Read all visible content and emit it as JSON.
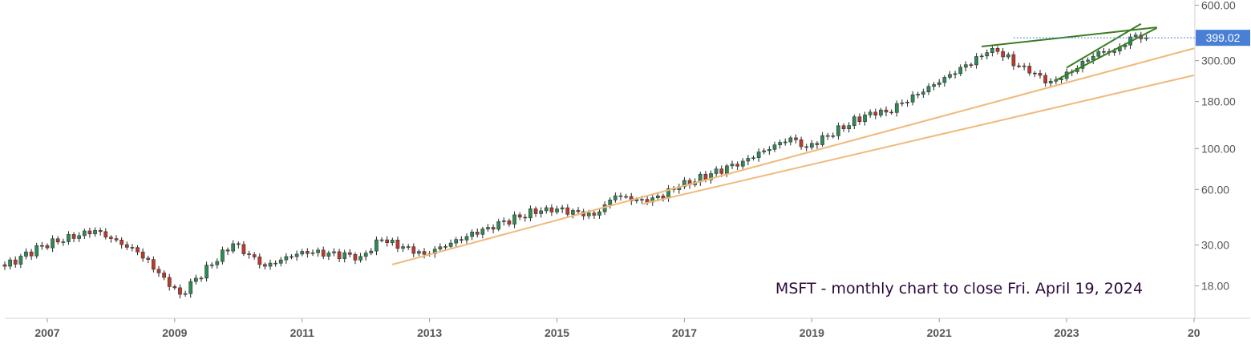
{
  "chart_data": {
    "type": "candlestick",
    "title": "MSFT - monthly chart to close Fri. April 19, 2024",
    "y_scale": "log",
    "ylim": [
      12,
      640
    ],
    "xlim": [
      "2006-05",
      "2025-01"
    ],
    "y_ticks": [
      "600.00",
      "300.00",
      "180.00",
      "100.00",
      "60.00",
      "30.00",
      "18.00"
    ],
    "x_ticks": [
      "2007",
      "2009",
      "2011",
      "2013",
      "2015",
      "2017",
      "2019",
      "2021",
      "2023",
      "20"
    ],
    "last_price": "399.02",
    "colors": {
      "up": "#2e8b57",
      "down": "#c0392b",
      "wick": "#222222",
      "trendline_orange": "#f0b97a",
      "trendline_green": "#3a7d22",
      "price_tag": "#4a7fd6",
      "price_line": "#4a7fd6",
      "axis_text": "#555555",
      "title_text": "#2b0a3d"
    },
    "anchor_closes": [
      [
        "2006-05",
        23.0
      ],
      [
        "2006-12",
        29.8
      ],
      [
        "2007-10",
        36.0
      ],
      [
        "2008-06",
        27.5
      ],
      [
        "2008-11",
        20.0
      ],
      [
        "2009-02",
        16.2
      ],
      [
        "2009-12",
        30.5
      ],
      [
        "2010-06",
        23.0
      ],
      [
        "2011-01",
        27.7
      ],
      [
        "2011-12",
        26.0
      ],
      [
        "2012-04",
        32.0
      ],
      [
        "2012-12",
        26.7
      ],
      [
        "2013-12",
        37.4
      ],
      [
        "2014-11",
        47.8
      ],
      [
        "2015-08",
        43.5
      ],
      [
        "2015-12",
        55.5
      ],
      [
        "2016-06",
        51.2
      ],
      [
        "2016-12",
        62.1
      ],
      [
        "2017-12",
        85.5
      ],
      [
        "2018-09",
        114.4
      ],
      [
        "2018-12",
        101.6
      ],
      [
        "2019-12",
        157.7
      ],
      [
        "2020-02",
        162.0
      ],
      [
        "2020-03",
        157.7
      ],
      [
        "2020-12",
        222.4
      ],
      [
        "2021-10",
        331.6
      ],
      [
        "2021-12",
        336.3
      ],
      [
        "2022-06",
        256.8
      ],
      [
        "2022-10",
        232.1
      ],
      [
        "2022-12",
        239.8
      ],
      [
        "2023-07",
        335.9
      ],
      [
        "2023-10",
        338.1
      ],
      [
        "2024-02",
        413.6
      ],
      [
        "2024-04",
        399.02
      ]
    ],
    "trendlines": [
      {
        "color": "orange",
        "points": [
          [
            "2012-06",
            23.5
          ],
          [
            "2025-01",
            350
          ]
        ]
      },
      {
        "color": "orange",
        "points": [
          [
            "2016-05",
            50.0
          ],
          [
            "2025-01",
            250
          ]
        ]
      },
      {
        "color": "green",
        "points": [
          [
            "2021-09",
            358
          ],
          [
            "2024-06",
            455
          ]
        ]
      },
      {
        "color": "green",
        "points": [
          [
            "2022-11",
            235
          ],
          [
            "2024-06",
            452
          ]
        ]
      },
      {
        "color": "green",
        "points": [
          [
            "2023-01",
            275
          ],
          [
            "2024-03",
            475
          ]
        ]
      }
    ]
  }
}
